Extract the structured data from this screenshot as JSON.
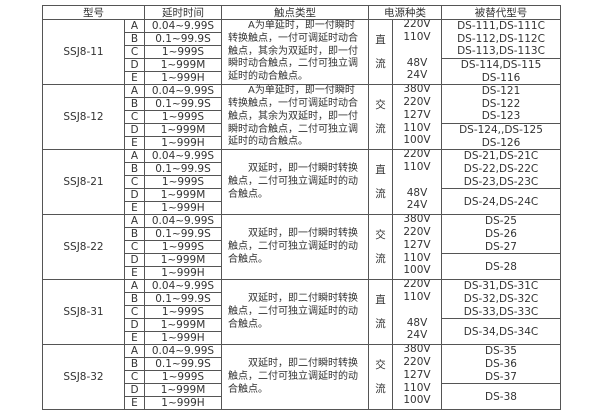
{
  "headers": {
    "model": "型号",
    "time": "延时时间",
    "contact": "触点类型",
    "power": "电源种类",
    "replace": "被替代型号"
  },
  "groups": [
    {
      "model": "SSJ8-11",
      "letters": [
        "A",
        "B",
        "C",
        "D",
        "E"
      ],
      "times": [
        "0.04~9.99S",
        "0.1~99.9S",
        "1~999S",
        "1~999M",
        "1~999H"
      ],
      "contact": "A为单延时，即一付瞬时转换触点，一付可调延时动合触点，其余为双延时，即一付瞬时动合触点，二付可独立调延时的动合触点。",
      "kind": [
        "直",
        "流"
      ],
      "voltages": [
        "220V",
        "110V",
        "",
        "48V",
        "24V"
      ],
      "replace_top": [
        "DS-111,DS-111C",
        "DS-112,DS-112C",
        "DS-113,DS-113C"
      ],
      "replace_bottom": [
        "DS-114,DS-115",
        "DS-116"
      ]
    },
    {
      "model": "SSJ8-12",
      "letters": [
        "A",
        "B",
        "C",
        "D",
        "E"
      ],
      "times": [
        "0.04~9.99S",
        "0.1~99.9S",
        "1~999S",
        "1~999M",
        "1~999H"
      ],
      "contact": "A为单延时，即一付瞬时转换触点，一付可调延时动合触点，其余为双延时，即一付瞬时动合触点，二付可独立调延时的动合触点。",
      "kind": [
        "交",
        "流"
      ],
      "voltages": [
        "380V",
        "220V",
        "127V",
        "110V",
        "100V"
      ],
      "replace_top": [
        "DS-121",
        "DS-122",
        "DS-123"
      ],
      "replace_bottom": [
        "DS-124,,DS-125",
        "DS-126"
      ]
    },
    {
      "model": "SSJ8-21",
      "letters": [
        "A",
        "B",
        "C",
        "D",
        "E"
      ],
      "times": [
        "0.04~9.99S",
        "0.1~99.9S",
        "1~999S",
        "1~999M",
        "1~999H"
      ],
      "contact": "双延时，即一付瞬时转换触点，二付可独立调延时的动合触点。",
      "kind": [
        "直",
        "流"
      ],
      "voltages": [
        "220V",
        "110V",
        "",
        "48V",
        "24V"
      ],
      "replace_top": [
        "DS-21,DS-21C",
        "DS-22,DS-22C",
        "DS-23,DS-23C"
      ],
      "replace_bottom": [
        "DS-24,DS-24C"
      ]
    },
    {
      "model": "SSJ8-22",
      "letters": [
        "A",
        "B",
        "C",
        "D",
        "E"
      ],
      "times": [
        "0.04~9.99S",
        "0.1~99.9S",
        "1~999S",
        "1~999M",
        "1~999H"
      ],
      "contact": "双延时，即一付瞬时转换触点，二付可独立调延时的动合触点。",
      "kind": [
        "交",
        "流"
      ],
      "voltages": [
        "380V",
        "220V",
        "127V",
        "110V",
        "100V"
      ],
      "replace_top": [
        "DS-25",
        "DS-26",
        "DS-27"
      ],
      "replace_bottom": [
        "DS-28"
      ]
    },
    {
      "model": "SSJ8-31",
      "letters": [
        "A",
        "B",
        "C",
        "D",
        "E"
      ],
      "times": [
        "0.04~9.99S",
        "0.1~99.9S",
        "1~999S",
        "1~999M",
        "1~999H"
      ],
      "contact": "双延时，即二付瞬时转换触点，二付可独立调延时的动合触点。",
      "kind": [
        "直",
        "流"
      ],
      "voltages": [
        "220V",
        "110V",
        "",
        "48V",
        "24V"
      ],
      "replace_top": [
        "DS-31,DS-31C",
        "DS-32,DS-32C",
        "DS-33,DS-33C"
      ],
      "replace_bottom": [
        "DS-34,DS-34C"
      ]
    },
    {
      "model": "SSJ8-32",
      "letters": [
        "A",
        "B",
        "C",
        "D",
        "E"
      ],
      "times": [
        "0.04~9.99S",
        "0.1~99.9S",
        "1~999S",
        "1~999M",
        "1~999H"
      ],
      "contact": "双延时，即二付瞬时转换触点，二付可独立调延时的动合触点。",
      "kind": [
        "交",
        "流"
      ],
      "voltages": [
        "380V",
        "220V",
        "127V",
        "110V",
        "100V"
      ],
      "replace_top": [
        "DS-35",
        "DS-36",
        "DS-37"
      ],
      "replace_bottom": [
        "DS-38"
      ]
    }
  ]
}
